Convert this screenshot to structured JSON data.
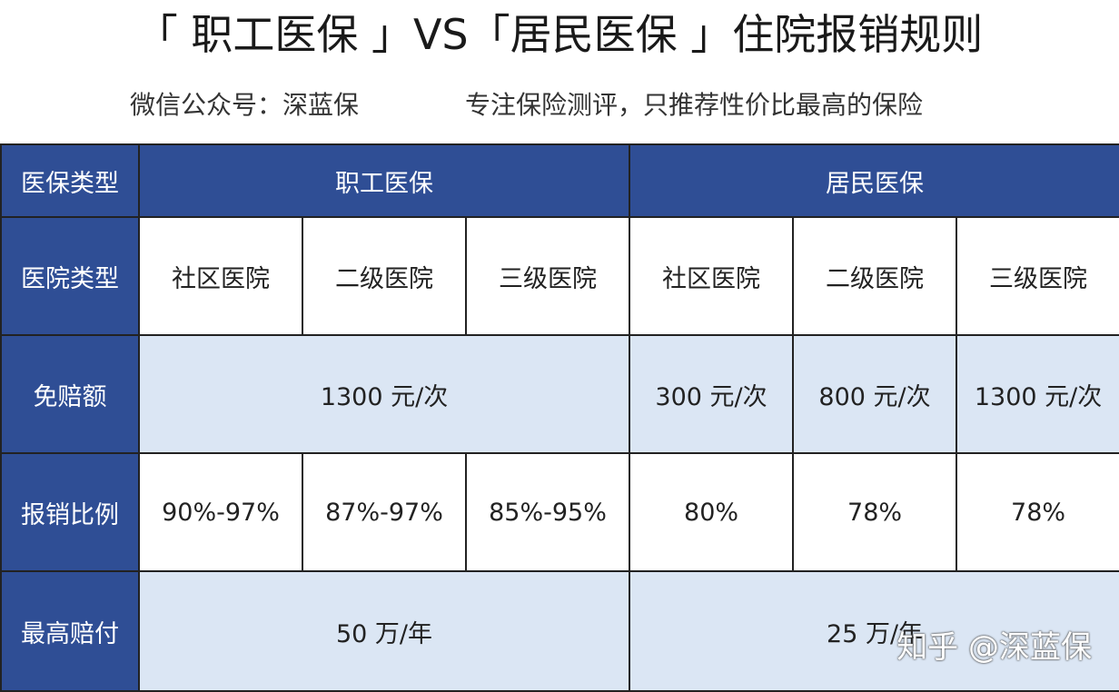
{
  "header": {
    "title": "「 职工医保 」VS「居民医保 」住院报销规则",
    "subtitle_left": "微信公众号：深蓝保",
    "subtitle_right": "专注保险测评，只推荐性价比最高的保险"
  },
  "table": {
    "rows": [
      [
        "医保类型",
        "职工医保",
        "居民医保"
      ],
      [
        "医院类型",
        "社区医院",
        "二级医院",
        "三级医院",
        "社区医院",
        "二级医院",
        "三级医院"
      ],
      [
        "免赔额",
        "1300 元/次",
        "300 元/次",
        "800 元/次",
        "1300 元/次"
      ],
      [
        "报销比例",
        "90%-97%",
        "87%-97%",
        "85%-95%",
        "80%",
        "78%",
        "78%"
      ],
      [
        "最高赔付",
        "50 万/年",
        "25 万/年"
      ]
    ]
  },
  "watermark": "知乎 @深蓝保"
}
